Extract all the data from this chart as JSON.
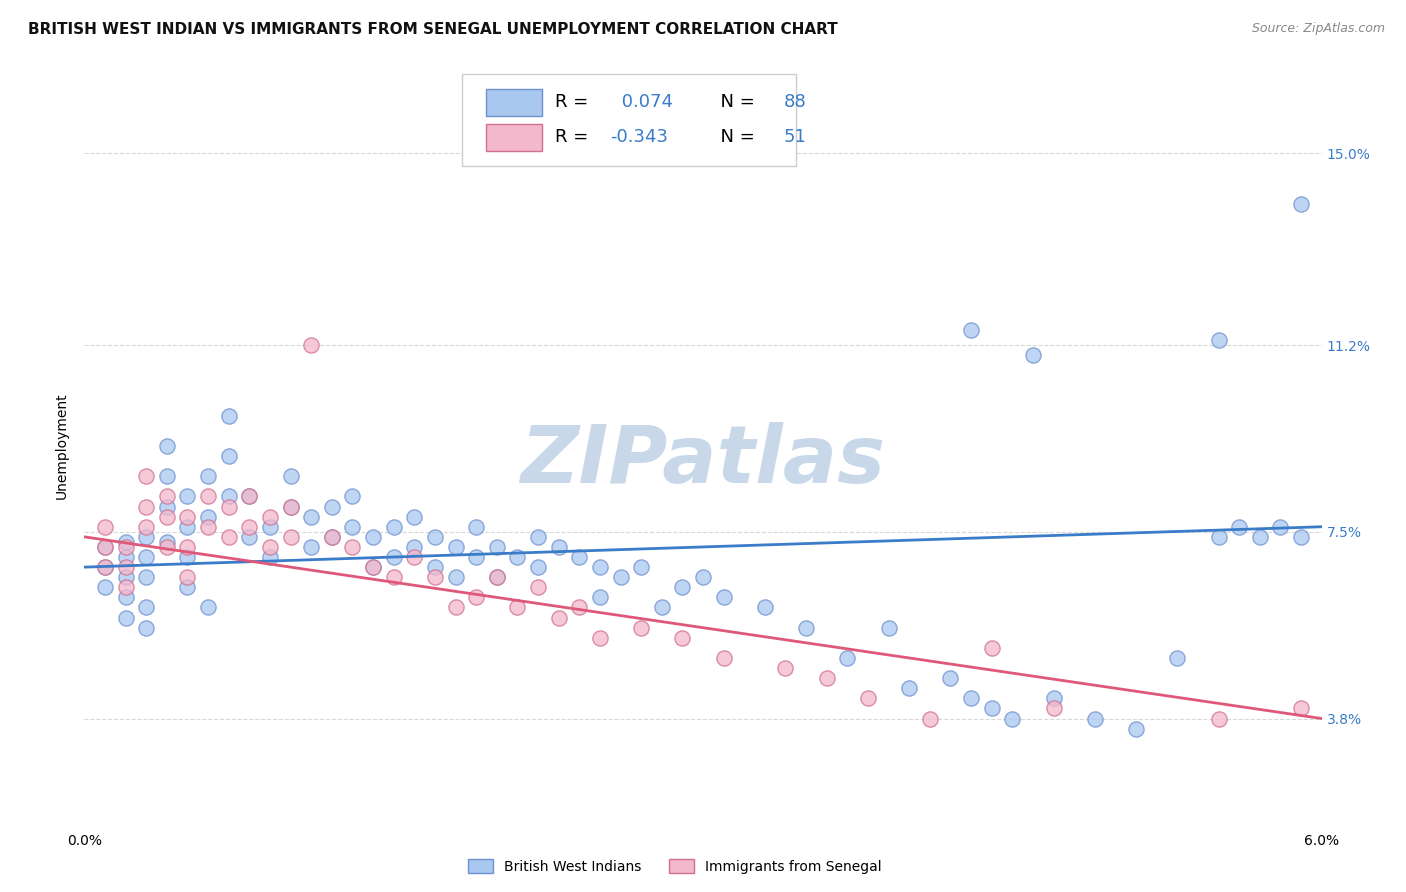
{
  "title": "BRITISH WEST INDIAN VS IMMIGRANTS FROM SENEGAL UNEMPLOYMENT CORRELATION CHART",
  "source": "Source: ZipAtlas.com",
  "ylabel": "Unemployment",
  "ytick_labels": [
    "15.0%",
    "11.2%",
    "7.5%",
    "3.8%"
  ],
  "ytick_values": [
    0.15,
    0.112,
    0.075,
    0.038
  ],
  "xlim": [
    0.0,
    0.06
  ],
  "ylim": [
    0.016,
    0.168
  ],
  "legend_blue_r_val": "0.074",
  "legend_blue_n_val": "88",
  "legend_pink_r_val": "-0.343",
  "legend_pink_n_val": "51",
  "blue_scatter_x": [
    0.001,
    0.001,
    0.001,
    0.002,
    0.002,
    0.002,
    0.002,
    0.002,
    0.003,
    0.003,
    0.003,
    0.003,
    0.003,
    0.004,
    0.004,
    0.004,
    0.004,
    0.005,
    0.005,
    0.005,
    0.005,
    0.006,
    0.006,
    0.006,
    0.007,
    0.007,
    0.007,
    0.008,
    0.008,
    0.009,
    0.009,
    0.01,
    0.01,
    0.011,
    0.011,
    0.012,
    0.012,
    0.013,
    0.013,
    0.014,
    0.014,
    0.015,
    0.015,
    0.016,
    0.016,
    0.017,
    0.017,
    0.018,
    0.018,
    0.019,
    0.019,
    0.02,
    0.02,
    0.021,
    0.022,
    0.022,
    0.023,
    0.024,
    0.025,
    0.025,
    0.026,
    0.027,
    0.028,
    0.029,
    0.03,
    0.031,
    0.033,
    0.035,
    0.037,
    0.039,
    0.04,
    0.042,
    0.043,
    0.044,
    0.045,
    0.047,
    0.049,
    0.051,
    0.053,
    0.055,
    0.056,
    0.057,
    0.058,
    0.059,
    0.043,
    0.046,
    0.055,
    0.059
  ],
  "blue_scatter_y": [
    0.068,
    0.072,
    0.064,
    0.07,
    0.066,
    0.062,
    0.058,
    0.073,
    0.074,
    0.07,
    0.066,
    0.06,
    0.056,
    0.073,
    0.08,
    0.086,
    0.092,
    0.076,
    0.082,
    0.07,
    0.064,
    0.078,
    0.086,
    0.06,
    0.082,
    0.09,
    0.098,
    0.074,
    0.082,
    0.076,
    0.07,
    0.08,
    0.086,
    0.078,
    0.072,
    0.08,
    0.074,
    0.076,
    0.082,
    0.074,
    0.068,
    0.076,
    0.07,
    0.078,
    0.072,
    0.074,
    0.068,
    0.072,
    0.066,
    0.076,
    0.07,
    0.072,
    0.066,
    0.07,
    0.074,
    0.068,
    0.072,
    0.07,
    0.068,
    0.062,
    0.066,
    0.068,
    0.06,
    0.064,
    0.066,
    0.062,
    0.06,
    0.056,
    0.05,
    0.056,
    0.044,
    0.046,
    0.042,
    0.04,
    0.038,
    0.042,
    0.038,
    0.036,
    0.05,
    0.074,
    0.076,
    0.074,
    0.076,
    0.074,
    0.115,
    0.11,
    0.113,
    0.14
  ],
  "pink_scatter_x": [
    0.001,
    0.001,
    0.001,
    0.002,
    0.002,
    0.002,
    0.003,
    0.003,
    0.003,
    0.004,
    0.004,
    0.004,
    0.005,
    0.005,
    0.005,
    0.006,
    0.006,
    0.007,
    0.007,
    0.008,
    0.008,
    0.009,
    0.009,
    0.01,
    0.01,
    0.011,
    0.012,
    0.013,
    0.014,
    0.015,
    0.016,
    0.017,
    0.018,
    0.019,
    0.02,
    0.021,
    0.022,
    0.023,
    0.024,
    0.025,
    0.027,
    0.029,
    0.031,
    0.034,
    0.036,
    0.038,
    0.041,
    0.044,
    0.047,
    0.055,
    0.059
  ],
  "pink_scatter_y": [
    0.068,
    0.072,
    0.076,
    0.064,
    0.068,
    0.072,
    0.076,
    0.08,
    0.086,
    0.072,
    0.078,
    0.082,
    0.066,
    0.072,
    0.078,
    0.076,
    0.082,
    0.074,
    0.08,
    0.076,
    0.082,
    0.072,
    0.078,
    0.074,
    0.08,
    0.112,
    0.074,
    0.072,
    0.068,
    0.066,
    0.07,
    0.066,
    0.06,
    0.062,
    0.066,
    0.06,
    0.064,
    0.058,
    0.06,
    0.054,
    0.056,
    0.054,
    0.05,
    0.048,
    0.046,
    0.042,
    0.038,
    0.052,
    0.04,
    0.038,
    0.04
  ],
  "blue_line_x": [
    0.0,
    0.06
  ],
  "blue_line_y": [
    0.068,
    0.076
  ],
  "pink_line_x": [
    0.0,
    0.06
  ],
  "pink_line_y": [
    0.074,
    0.038
  ],
  "blue_color": "#a8c8f0",
  "pink_color": "#f4b8cc",
  "blue_line_color": "#3a7cc8",
  "pink_line_color": "#e05878",
  "blue_edge_color": "#7090d0",
  "pink_edge_color": "#d07090",
  "grid_color": "#d8d8d8",
  "watermark_color": "#c8d8e8",
  "title_fontsize": 11,
  "axis_label_fontsize": 10,
  "tick_fontsize": 10,
  "legend_fontsize": 13,
  "source_fontsize": 9
}
